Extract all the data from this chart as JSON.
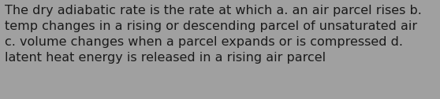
{
  "text": "The dry adiabatic rate is the rate at which a. an air parcel rises b.\ntemp changes in a rising or descending parcel of unsaturated air\nc. volume changes when a parcel expands or is compressed d.\nlatent heat energy is released in a rising air parcel",
  "background_color": "#a0a0a0",
  "text_color": "#1a1a1a",
  "font_size": 11.5,
  "fig_width": 5.58,
  "fig_height": 1.26
}
